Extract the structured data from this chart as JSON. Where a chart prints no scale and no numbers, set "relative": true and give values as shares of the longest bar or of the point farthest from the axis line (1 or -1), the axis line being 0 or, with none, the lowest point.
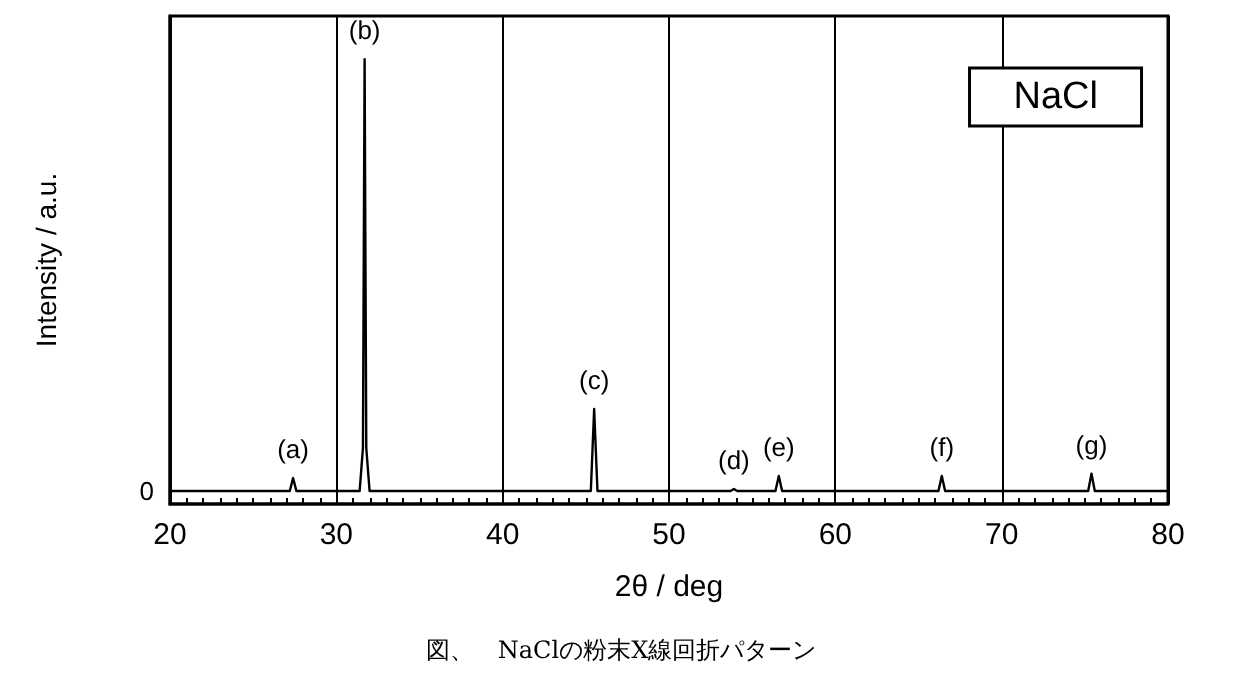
{
  "chart_data": {
    "type": "line",
    "title": "図、　NaClの粉末X線回折パターン",
    "xlabel": "2θ / deg",
    "ylabel": "Intensity / a.u.",
    "relative": true,
    "x": [
      20,
      27.2,
      27.4,
      27.6,
      31.4,
      31.6,
      31.7,
      31.8,
      32.0,
      45.3,
      45.5,
      45.7,
      53.7,
      53.9,
      54.1,
      56.4,
      56.6,
      56.8,
      66.2,
      66.4,
      66.6,
      75.2,
      75.4,
      75.6,
      80
    ],
    "series": [
      {
        "color": "#000000",
        "values": [
          0,
          0,
          0.03,
          0,
          0,
          0.1,
          1,
          0.1,
          0,
          0,
          0.19,
          0,
          0,
          0.005,
          0,
          0,
          0.035,
          0,
          0,
          0.035,
          0,
          0,
          0.04,
          0,
          0
        ]
      }
    ],
    "xlim": [
      20,
      80
    ],
    "xticks": [
      20,
      30,
      40,
      50,
      60,
      70,
      80
    ],
    "grid": "x",
    "marker": "none",
    "line_style": "solid",
    "annotations": [
      "NaCl",
      {
        "text": "0",
        "x": 20,
        "y": 0
      },
      {
        "text": "(a)",
        "x": 27.4,
        "y": 0.03
      },
      {
        "text": "(b)",
        "x": 31.7,
        "y": 1
      },
      {
        "text": "(c)",
        "x": 45.5,
        "y": 0.19
      },
      {
        "text": "(d)",
        "x": 53.9,
        "y": 0.005
      },
      {
        "text": "(e)",
        "x": 56.6,
        "y": 0.035
      },
      {
        "text": "(f)",
        "x": 66.4,
        "y": 0.035
      },
      {
        "text": "(g)",
        "x": 75.4,
        "y": 0.04
      }
    ]
  }
}
